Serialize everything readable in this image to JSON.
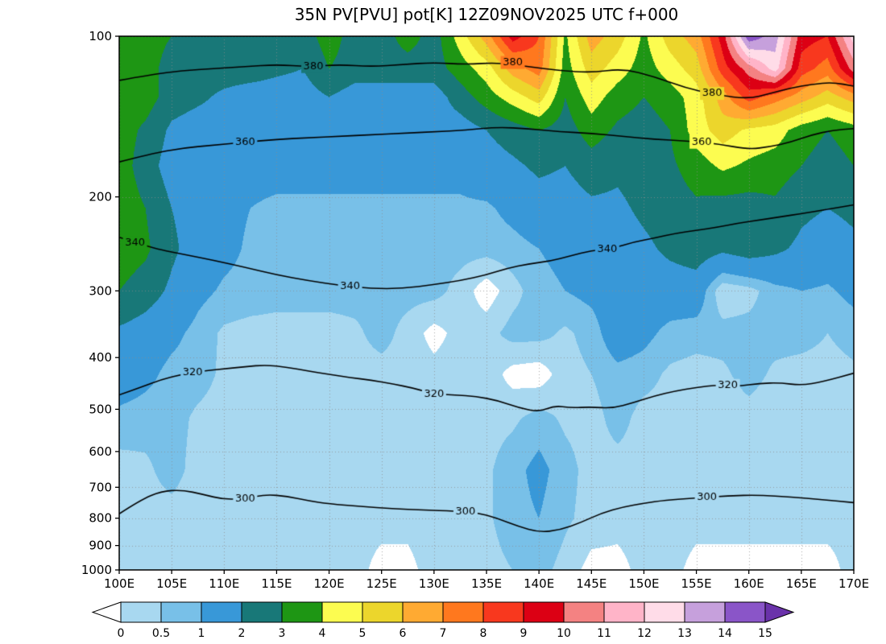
{
  "title": "35N PV[PVU] pot[K] 12Z09NOV2025 UTC f+000",
  "chart_data": {
    "type": "heatmap",
    "title": "35N PV[PVU] pot[K] 12Z09NOV2025 UTC f+000",
    "x_label": "",
    "y_label": "",
    "x_range": [
      100,
      170
    ],
    "y_range": [
      100,
      1000
    ],
    "y_scale": "log",
    "grid_on": true,
    "x_ticks": {
      "values": [
        100,
        105,
        110,
        115,
        120,
        125,
        130,
        135,
        140,
        145,
        150,
        155,
        160,
        165,
        170
      ],
      "labels": [
        "100E",
        "105E",
        "110E",
        "115E",
        "120E",
        "125E",
        "130E",
        "135E",
        "140E",
        "145E",
        "150E",
        "155E",
        "160E",
        "165E",
        "170E"
      ]
    },
    "y_ticks": {
      "values": [
        100,
        200,
        300,
        400,
        500,
        600,
        700,
        800,
        900,
        1000
      ],
      "labels": [
        "100",
        "200",
        "300",
        "400",
        "500",
        "600",
        "700",
        "800",
        "900",
        "1000"
      ]
    },
    "colorbar": {
      "levels": [
        0,
        0.5,
        1,
        2,
        3,
        4,
        5,
        6,
        7,
        8,
        9,
        10,
        11,
        12,
        13,
        14,
        15
      ],
      "labels": [
        "0",
        "0.5",
        "1",
        "2",
        "3",
        "4",
        "5",
        "6",
        "7",
        "8",
        "9",
        "10",
        "11",
        "12",
        "13",
        "14",
        "15"
      ],
      "colors": [
        "#a8d8f0",
        "#78c0e8",
        "#3898d8",
        "#187878",
        "#1e9614",
        "#fcfc50",
        "#ecd62c",
        "#ffaa32",
        "#ff781e",
        "#f8381e",
        "#dc0014",
        "#f48282",
        "#ffb4c8",
        "#ffdce8",
        "#c6a0dc",
        "#8a55c8"
      ],
      "under_color": "#ffffff",
      "over_color": "#6a32aa"
    },
    "pv_grid": {
      "units": "PVU",
      "lons": [
        100,
        102.5,
        105,
        107.5,
        110,
        112.5,
        115,
        117.5,
        120,
        122.5,
        125,
        127.5,
        130,
        132.5,
        135,
        137.5,
        140,
        142.5,
        145,
        147.5,
        150,
        152.5,
        155,
        157.5,
        160,
        162.5,
        165,
        167.5,
        170
      ],
      "pressures": [
        100,
        115,
        130,
        150,
        175,
        210,
        250,
        300,
        360,
        430,
        520,
        650,
        800,
        1000
      ],
      "values": [
        [
          3.5,
          3.5,
          3.0,
          2.5,
          2.5,
          2.5,
          2.5,
          2.5,
          3.5,
          2.5,
          2.5,
          3.5,
          2.5,
          4.5,
          6.5,
          9.5,
          8.0,
          3.8,
          6.5,
          5.5,
          3.8,
          5.5,
          6.5,
          9.5,
          14.7,
          13.5,
          9.5,
          9.0,
          12.5
        ],
        [
          3.5,
          3.5,
          2.5,
          2.5,
          2.5,
          2.5,
          2.2,
          2.0,
          3.0,
          2.5,
          2.5,
          2.5,
          2.5,
          3.5,
          4.5,
          6.5,
          7.5,
          3.5,
          5.5,
          4.5,
          3.5,
          4.5,
          5.5,
          8.5,
          10.5,
          12.5,
          8.5,
          7.5,
          10.5
        ],
        [
          3.5,
          3.5,
          2.5,
          2.2,
          1.8,
          1.5,
          1.5,
          1.5,
          2.0,
          1.5,
          1.5,
          1.5,
          1.5,
          2.5,
          3.5,
          4.5,
          5.5,
          3.0,
          4.5,
          3.5,
          3.0,
          3.5,
          4.5,
          6.5,
          8.5,
          7.5,
          6.5,
          5.5,
          6.5
        ],
        [
          3.5,
          2.8,
          1.8,
          1.5,
          1.5,
          1.5,
          1.5,
          1.5,
          1.5,
          1.5,
          1.5,
          1.5,
          1.5,
          1.5,
          2.0,
          2.5,
          3.0,
          2.5,
          3.5,
          2.8,
          2.5,
          3.0,
          4.5,
          5.5,
          4.8,
          4.5,
          3.5,
          3.0,
          3.5
        ],
        [
          3.5,
          2.5,
          1.5,
          1.2,
          1.2,
          1.2,
          1.2,
          1.2,
          1.2,
          1.2,
          1.2,
          1.2,
          1.2,
          1.2,
          1.5,
          1.8,
          2.2,
          2.0,
          2.5,
          2.2,
          2.5,
          2.8,
          3.5,
          4.2,
          3.8,
          3.5,
          3.0,
          2.5,
          3.0
        ],
        [
          3.6,
          3.0,
          2.0,
          1.5,
          1.2,
          1.0,
          0.9,
          0.9,
          0.9,
          0.9,
          0.9,
          0.9,
          0.9,
          0.9,
          0.9,
          1.2,
          1.5,
          1.5,
          1.8,
          1.8,
          2.2,
          2.5,
          2.8,
          2.5,
          2.5,
          2.8,
          2.2,
          2.0,
          2.2
        ],
        [
          3.6,
          3.2,
          2.2,
          1.5,
          1.2,
          0.9,
          0.8,
          0.7,
          0.7,
          0.7,
          0.7,
          0.7,
          0.7,
          0.7,
          0.7,
          0.8,
          1.0,
          1.2,
          1.5,
          1.5,
          1.8,
          2.2,
          2.5,
          2.2,
          2.5,
          2.2,
          1.8,
          1.5,
          1.8
        ],
        [
          3.0,
          2.5,
          1.8,
          1.2,
          0.9,
          0.8,
          0.7,
          0.7,
          0.7,
          0.7,
          0.7,
          0.7,
          0.7,
          0.3,
          -0.3,
          0.3,
          0.8,
          1.0,
          1.2,
          1.5,
          1.5,
          1.5,
          1.5,
          0.1,
          0.3,
          0.8,
          1.0,
          0.9,
          1.2
        ],
        [
          1.8,
          1.5,
          1.2,
          0.8,
          0.4,
          0.3,
          0.3,
          0.3,
          0.3,
          0.4,
          0.7,
          0.3,
          -0.2,
          0.2,
          0.3,
          0.7,
          0.7,
          0.4,
          0.7,
          1.5,
          1.2,
          0.8,
          0.7,
          0.7,
          0.7,
          0.7,
          0.7,
          0.5,
          0.7
        ],
        [
          1.5,
          1.2,
          0.8,
          0.7,
          0.4,
          0.3,
          0.3,
          0.3,
          0.3,
          0.3,
          0.3,
          0.3,
          0.2,
          0.3,
          0.3,
          -0.2,
          -0.3,
          0.3,
          0.5,
          0.8,
          0.7,
          0.4,
          0.3,
          0.4,
          0.7,
          0.4,
          0.3,
          0.3,
          0.4
        ],
        [
          0.8,
          0.7,
          0.7,
          0.4,
          0.3,
          0.3,
          0.3,
          0.2,
          0.2,
          0.2,
          0.2,
          0.2,
          0.2,
          0.2,
          0.3,
          0.4,
          0.7,
          0.4,
          0.3,
          0.7,
          0.3,
          0.3,
          0.3,
          0.2,
          0.3,
          0.2,
          0.2,
          0.2,
          0.3
        ],
        [
          0.3,
          0.4,
          0.7,
          0.3,
          0.2,
          0.2,
          0.2,
          0.2,
          0.2,
          0.2,
          0.2,
          0.2,
          0.2,
          0.2,
          0.4,
          0.8,
          1.2,
          0.7,
          0.3,
          0.3,
          0.3,
          0.2,
          0.2,
          0.2,
          0.2,
          0.2,
          0.2,
          0.2,
          0.2
        ],
        [
          0.3,
          0.3,
          0.3,
          0.2,
          0.2,
          0.2,
          0.2,
          0.2,
          0.2,
          0.2,
          0.2,
          0.2,
          0.4,
          0.3,
          0.4,
          0.8,
          1.0,
          0.6,
          0.3,
          0.2,
          0.3,
          0.3,
          0.2,
          0.2,
          0.2,
          0.2,
          0.2,
          0.2,
          0.2
        ],
        [
          0.2,
          0.2,
          0.3,
          0.2,
          0.2,
          0.2,
          0.2,
          0.2,
          0.2,
          0.2,
          -0.2,
          -0.2,
          0.3,
          0.2,
          0.3,
          0.5,
          0.7,
          0.3,
          -0.2,
          -0.2,
          0.2,
          0.2,
          -0.2,
          -0.2,
          -0.2,
          -0.2,
          -0.2,
          -0.2,
          0.2
        ]
      ]
    },
    "theta_contours_K": [
      {
        "label": "300",
        "points": [
          [
            100,
            785
          ],
          [
            102,
            740
          ],
          [
            104,
            712
          ],
          [
            106,
            708
          ],
          [
            108,
            722
          ],
          [
            110,
            738
          ],
          [
            112,
            735
          ],
          [
            114,
            722
          ],
          [
            116,
            728
          ],
          [
            118,
            742
          ],
          [
            120,
            752
          ],
          [
            123,
            760
          ],
          [
            126,
            768
          ],
          [
            129,
            772
          ],
          [
            132,
            776
          ],
          [
            134,
            780
          ],
          [
            136,
            800
          ],
          [
            138,
            828
          ],
          [
            140,
            850
          ],
          [
            142,
            842
          ],
          [
            144,
            815
          ],
          [
            146,
            782
          ],
          [
            148,
            762
          ],
          [
            150,
            750
          ],
          [
            152,
            740
          ],
          [
            155,
            733
          ],
          [
            158,
            726
          ],
          [
            161,
            724
          ],
          [
            164,
            730
          ],
          [
            167,
            738
          ],
          [
            170,
            748
          ]
        ],
        "label_positions": [
          [
            112,
            735
          ],
          [
            133,
            778
          ],
          [
            156,
            730
          ]
        ]
      },
      {
        "label": "320",
        "points": [
          [
            100,
            470
          ],
          [
            102,
            455
          ],
          [
            104,
            440
          ],
          [
            106,
            430
          ],
          [
            108,
            424
          ],
          [
            110,
            420
          ],
          [
            112,
            416
          ],
          [
            114,
            413
          ],
          [
            116,
            417
          ],
          [
            118,
            424
          ],
          [
            120,
            430
          ],
          [
            122,
            436
          ],
          [
            124,
            441
          ],
          [
            126,
            448
          ],
          [
            128,
            456
          ],
          [
            130,
            468
          ],
          [
            132,
            470
          ],
          [
            134,
            473
          ],
          [
            136,
            481
          ],
          [
            138,
            496
          ],
          [
            140,
            506
          ],
          [
            141.5,
            492
          ],
          [
            143,
            497
          ],
          [
            145,
            495
          ],
          [
            147,
            498
          ],
          [
            149,
            486
          ],
          [
            151,
            472
          ],
          [
            153,
            462
          ],
          [
            155,
            455
          ],
          [
            157,
            450
          ],
          [
            159,
            453
          ],
          [
            161,
            447
          ],
          [
            163,
            446
          ],
          [
            165,
            451
          ],
          [
            167,
            444
          ],
          [
            170,
            428
          ]
        ],
        "label_positions": [
          [
            107,
            427
          ],
          [
            130,
            468
          ],
          [
            158,
            451
          ]
        ]
      },
      {
        "label": "340",
        "points": [
          [
            100,
            238
          ],
          [
            103,
            249
          ],
          [
            106,
            256
          ],
          [
            109,
            263
          ],
          [
            112,
            271
          ],
          [
            115,
            280
          ],
          [
            118,
            287
          ],
          [
            121,
            293
          ],
          [
            124,
            297
          ],
          [
            127,
            297
          ],
          [
            130,
            292
          ],
          [
            132.5,
            287
          ],
          [
            135,
            280
          ],
          [
            137,
            272
          ],
          [
            139,
            267
          ],
          [
            141,
            264
          ],
          [
            143,
            258
          ],
          [
            145,
            252
          ],
          [
            147,
            250
          ],
          [
            149,
            243
          ],
          [
            151,
            239
          ],
          [
            153,
            234
          ],
          [
            155,
            231
          ],
          [
            157,
            228
          ],
          [
            159,
            224
          ],
          [
            161,
            221
          ],
          [
            163,
            218
          ],
          [
            165,
            215
          ],
          [
            167.5,
            211
          ],
          [
            170,
            207
          ]
        ],
        "label_positions": [
          [
            101.5,
            244
          ],
          [
            122,
            294
          ],
          [
            146.5,
            251
          ]
        ]
      },
      {
        "label": "360",
        "points": [
          [
            100,
            172
          ],
          [
            103,
            166
          ],
          [
            106,
            162
          ],
          [
            109,
            160
          ],
          [
            112,
            158
          ],
          [
            115,
            156
          ],
          [
            118,
            155
          ],
          [
            121,
            154
          ],
          [
            124,
            153
          ],
          [
            127,
            152
          ],
          [
            130,
            151
          ],
          [
            133,
            150
          ],
          [
            136,
            148
          ],
          [
            139,
            149
          ],
          [
            142,
            151
          ],
          [
            145,
            152
          ],
          [
            148,
            154
          ],
          [
            151,
            156
          ],
          [
            154,
            157
          ],
          [
            157,
            159
          ],
          [
            160,
            163
          ],
          [
            162,
            161
          ],
          [
            164,
            158
          ],
          [
            166,
            153
          ],
          [
            168,
            150
          ],
          [
            170,
            149
          ]
        ],
        "label_positions": [
          [
            112,
            158
          ],
          [
            155.5,
            158
          ]
        ]
      },
      {
        "label": "380",
        "points": [
          [
            100,
            121
          ],
          [
            103,
            118
          ],
          [
            106,
            116
          ],
          [
            109,
            115
          ],
          [
            112,
            114
          ],
          [
            115,
            113
          ],
          [
            118,
            114
          ],
          [
            121,
            113
          ],
          [
            124,
            114
          ],
          [
            127,
            113
          ],
          [
            130,
            112
          ],
          [
            133,
            113
          ],
          [
            136,
            112
          ],
          [
            139,
            114
          ],
          [
            142,
            116
          ],
          [
            145,
            117
          ],
          [
            148,
            115
          ],
          [
            151,
            119
          ],
          [
            154,
            125
          ],
          [
            157,
            129
          ],
          [
            160,
            131
          ],
          [
            162,
            128
          ],
          [
            164,
            125
          ],
          [
            166,
            123
          ],
          [
            168,
            122
          ],
          [
            170,
            124
          ]
        ],
        "label_positions": [
          [
            118.5,
            114
          ],
          [
            137.5,
            112
          ],
          [
            156.5,
            128
          ]
        ]
      }
    ]
  }
}
